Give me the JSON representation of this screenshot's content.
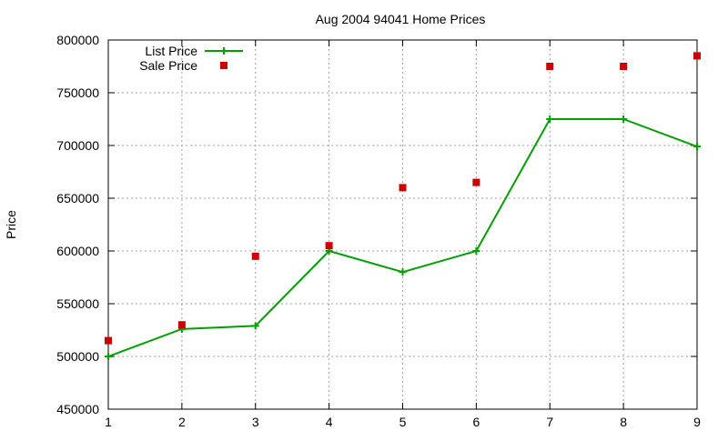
{
  "chart_data": {
    "type": "line",
    "title": "Aug 2004 94041 Home Prices",
    "xlabel": "",
    "ylabel": "Price",
    "x": [
      1,
      2,
      3,
      4,
      5,
      6,
      7,
      8,
      9
    ],
    "xlim": [
      1,
      9
    ],
    "ylim": [
      450000,
      800000
    ],
    "x_ticks": [
      "1",
      "2",
      "3",
      "4",
      "5",
      "6",
      "7",
      "8",
      "9"
    ],
    "y_ticks": [
      "450000",
      "500000",
      "550000",
      "600000",
      "650000",
      "700000",
      "750000",
      "800000"
    ],
    "grid": true,
    "legend_position": "top-left",
    "series": [
      {
        "name": "List Price",
        "style": "line-with-plus-markers",
        "color": "#00a000",
        "values": [
          500000,
          526000,
          529000,
          600000,
          580000,
          600000,
          725000,
          725000,
          699000
        ]
      },
      {
        "name": "Sale Price",
        "style": "square-markers",
        "color": "#cc0000",
        "values": [
          515000,
          530000,
          595000,
          605000,
          660000,
          665000,
          775000,
          775000,
          785000
        ]
      }
    ]
  }
}
